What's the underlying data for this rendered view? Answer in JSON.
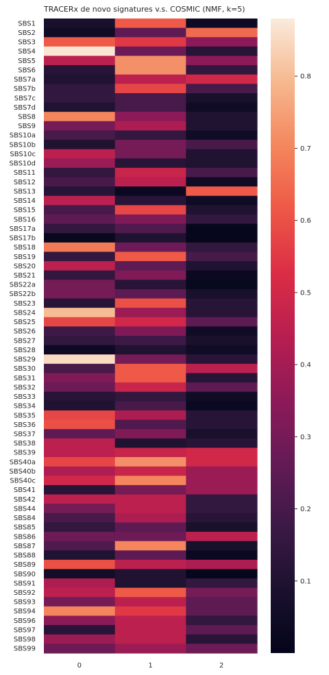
{
  "chart_data": {
    "type": "heatmap",
    "title": "TRACERx de novo signatures v.s. COSMIC (NMF, k=5)",
    "xlabel": "",
    "ylabel": "",
    "columns": [
      "0",
      "1",
      "2"
    ],
    "rows": [
      "SBS1",
      "SBS2",
      "SBS3",
      "SBS4",
      "SBS5",
      "SBS6",
      "SBS7a",
      "SBS7b",
      "SBS7c",
      "SBS7d",
      "SBS8",
      "SBS9",
      "SBS10a",
      "SBS10b",
      "SBS10c",
      "SBS10d",
      "SBS11",
      "SBS12",
      "SBS13",
      "SBS14",
      "SBS15",
      "SBS16",
      "SBS17a",
      "SBS17b",
      "SBS18",
      "SBS19",
      "SBS20",
      "SBS21",
      "SBS22a",
      "SBS22b",
      "SBS23",
      "SBS24",
      "SBS25",
      "SBS26",
      "SBS27",
      "SBS28",
      "SBS29",
      "SBS30",
      "SBS31",
      "SBS32",
      "SBS33",
      "SBS34",
      "SBS35",
      "SBS36",
      "SBS37",
      "SBS38",
      "SBS39",
      "SBS40a",
      "SBS40b",
      "SBS40c",
      "SBS41",
      "SBS42",
      "SBS44",
      "SBS84",
      "SBS85",
      "SBS86",
      "SBS87",
      "SBS88",
      "SBS89",
      "SBS90",
      "SBS91",
      "SBS92",
      "SBS93",
      "SBS94",
      "SBS96",
      "SBS97",
      "SBS98",
      "SBS99"
    ],
    "values": [
      [
        0.08,
        0.62,
        0.04
      ],
      [
        0.05,
        0.25,
        0.65
      ],
      [
        0.62,
        0.55,
        0.35
      ],
      [
        0.87,
        0.28,
        0.12
      ],
      [
        0.45,
        0.72,
        0.35
      ],
      [
        0.12,
        0.72,
        0.15
      ],
      [
        0.1,
        0.45,
        0.5
      ],
      [
        0.15,
        0.58,
        0.2
      ],
      [
        0.15,
        0.2,
        0.08
      ],
      [
        0.1,
        0.2,
        0.05
      ],
      [
        0.7,
        0.35,
        0.1
      ],
      [
        0.3,
        0.42,
        0.1
      ],
      [
        0.2,
        0.15,
        0.05
      ],
      [
        0.1,
        0.3,
        0.2
      ],
      [
        0.45,
        0.3,
        0.1
      ],
      [
        0.38,
        0.12,
        0.1
      ],
      [
        0.15,
        0.48,
        0.2
      ],
      [
        0.2,
        0.45,
        0.05
      ],
      [
        0.12,
        0.03,
        0.62
      ],
      [
        0.45,
        0.12,
        0.05
      ],
      [
        0.2,
        0.58,
        0.1
      ],
      [
        0.25,
        0.32,
        0.15
      ],
      [
        0.15,
        0.22,
        0.01
      ],
      [
        0.02,
        0.1,
        0.01
      ],
      [
        0.68,
        0.28,
        0.15
      ],
      [
        0.15,
        0.62,
        0.2
      ],
      [
        0.45,
        0.25,
        0.1
      ],
      [
        0.15,
        0.32,
        0.03
      ],
      [
        0.3,
        0.12,
        0.02
      ],
      [
        0.3,
        0.25,
        0.08
      ],
      [
        0.12,
        0.6,
        0.12
      ],
      [
        0.8,
        0.38,
        0.12
      ],
      [
        0.58,
        0.5,
        0.25
      ],
      [
        0.18,
        0.32,
        0.05
      ],
      [
        0.15,
        0.18,
        0.08
      ],
      [
        0.04,
        0.1,
        0.05
      ],
      [
        0.85,
        0.3,
        0.12
      ],
      [
        0.2,
        0.62,
        0.45
      ],
      [
        0.32,
        0.62,
        0.12
      ],
      [
        0.28,
        0.48,
        0.25
      ],
      [
        0.12,
        0.15,
        0.05
      ],
      [
        0.1,
        0.2,
        0.03
      ],
      [
        0.58,
        0.42,
        0.12
      ],
      [
        0.6,
        0.22,
        0.12
      ],
      [
        0.25,
        0.32,
        0.08
      ],
      [
        0.45,
        0.1,
        0.12
      ],
      [
        0.45,
        0.48,
        0.5
      ],
      [
        0.58,
        0.72,
        0.5
      ],
      [
        0.42,
        0.48,
        0.38
      ],
      [
        0.5,
        0.7,
        0.38
      ],
      [
        0.12,
        0.3,
        0.38
      ],
      [
        0.45,
        0.45,
        0.15
      ],
      [
        0.3,
        0.45,
        0.15
      ],
      [
        0.2,
        0.42,
        0.12
      ],
      [
        0.15,
        0.25,
        0.08
      ],
      [
        0.28,
        0.28,
        0.45
      ],
      [
        0.22,
        0.7,
        0.08
      ],
      [
        0.1,
        0.25,
        0.03
      ],
      [
        0.6,
        0.45,
        0.42
      ],
      [
        0.06,
        0.1,
        0.01
      ],
      [
        0.42,
        0.1,
        0.15
      ],
      [
        0.45,
        0.62,
        0.3
      ],
      [
        0.3,
        0.45,
        0.25
      ],
      [
        0.7,
        0.55,
        0.25
      ],
      [
        0.35,
        0.45,
        0.15
      ],
      [
        0.12,
        0.45,
        0.25
      ],
      [
        0.38,
        0.45,
        0.12
      ],
      [
        0.28,
        0.38,
        0.28
      ]
    ],
    "colorbar": {
      "colormap": "rocket",
      "range": [
        0.0,
        0.88
      ],
      "ticks": [
        0.1,
        0.2,
        0.3,
        0.4,
        0.5,
        0.6,
        0.7,
        0.8
      ],
      "tick_labels": [
        "0.1",
        "0.2",
        "0.3",
        "0.4",
        "0.5",
        "0.6",
        "0.7",
        "0.8"
      ]
    }
  }
}
